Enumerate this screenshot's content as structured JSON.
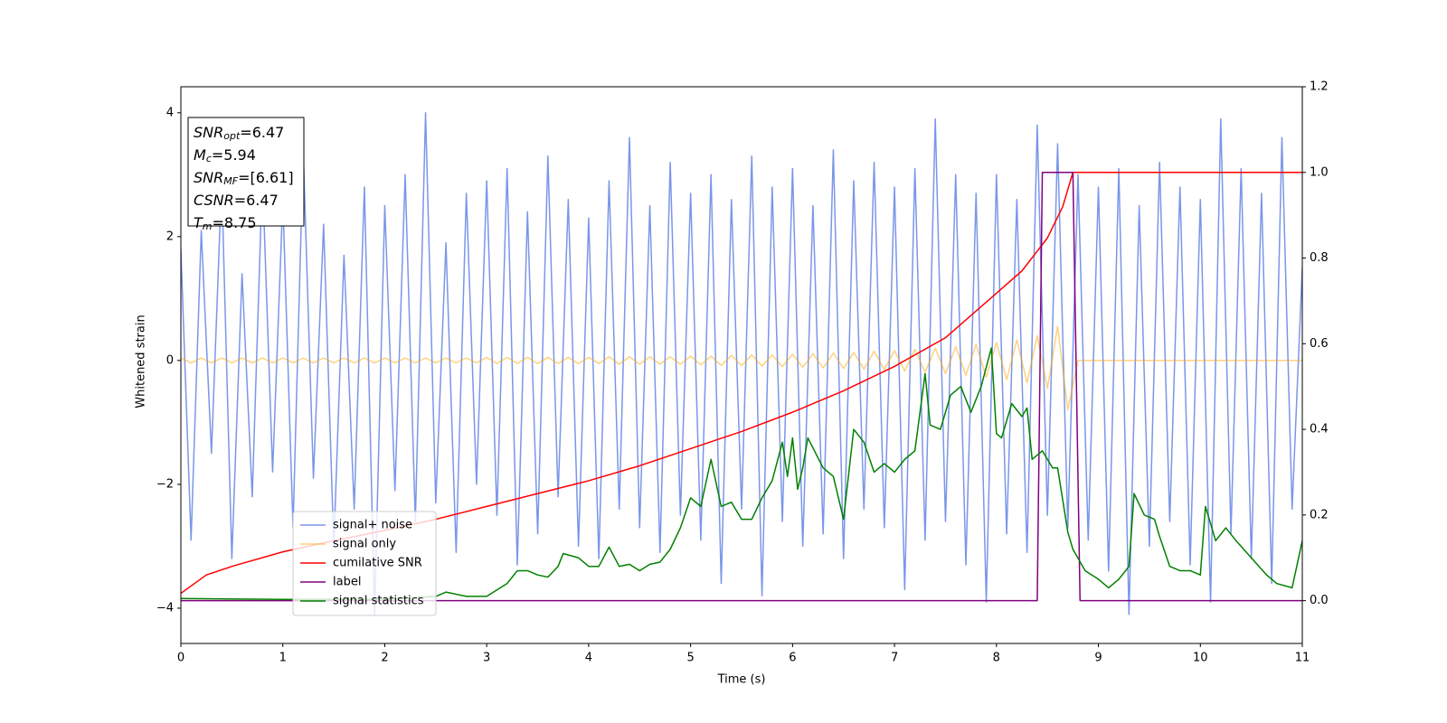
{
  "chart_data": {
    "type": "line",
    "xlabel": "Time (s)",
    "ylabel": "Whitened strain",
    "xlim": [
      0,
      11
    ],
    "xticks": [
      0,
      1,
      2,
      3,
      4,
      5,
      6,
      7,
      8,
      9,
      10,
      11
    ],
    "ylim": [
      -4.57,
      4.42
    ],
    "yticks": [
      {
        "value": -4,
        "label": "−4"
      },
      {
        "value": -2,
        "label": "−2"
      },
      0,
      2,
      4
    ],
    "y2lim": [
      -0.1,
      1.2
    ],
    "y2ticks": [
      {
        "value": 0,
        "label": "0.0"
      },
      {
        "value": 0.2,
        "label": "0.2"
      },
      {
        "value": 0.4,
        "label": "0.4"
      },
      {
        "value": 0.6,
        "label": "0.6"
      },
      {
        "value": 0.8,
        "label": "0.8"
      },
      {
        "value": 1,
        "label": "1.0"
      },
      {
        "value": 1.2,
        "label": "1.2"
      }
    ],
    "legend": "lower left",
    "annotations": [
      {
        "name": "SNR",
        "sub": "opt",
        "text": "=6.47"
      },
      {
        "name": "M",
        "sub": "c",
        "text": "=5.94"
      },
      {
        "name": "SNR",
        "sub": "MF",
        "text": "=[6.61]"
      },
      {
        "name": "CSNR",
        "text": "=6.47"
      },
      {
        "name": "T",
        "sub": "m",
        "text": "=8.75"
      }
    ],
    "x": [
      0,
      0.1,
      0.2,
      0.3,
      0.4,
      0.5,
      0.6,
      0.7,
      0.8,
      0.9,
      1,
      1.1,
      1.2,
      1.3,
      1.4,
      1.5,
      1.6,
      1.7,
      1.8,
      1.9,
      2,
      2.1,
      2.2,
      2.3,
      2.4,
      2.5,
      2.6,
      2.7,
      2.8,
      2.9,
      3,
      3.1,
      3.2,
      3.3,
      3.4,
      3.5,
      3.6,
      3.7,
      3.8,
      3.9,
      4,
      4.1,
      4.2,
      4.3,
      4.4,
      4.5,
      4.6,
      4.7,
      4.8,
      4.9,
      5,
      5.1,
      5.2,
      5.3,
      5.4,
      5.5,
      5.6,
      5.7,
      5.8,
      5.9,
      6,
      6.1,
      6.2,
      6.3,
      6.4,
      6.5,
      6.6,
      6.7,
      6.8,
      6.9,
      7,
      7.1,
      7.2,
      7.3,
      7.4,
      7.5,
      7.6,
      7.7,
      7.8,
      7.9,
      8,
      8.1,
      8.2,
      8.3,
      8.4,
      8.5,
      8.6,
      8.7,
      8.8,
      8.9,
      9,
      9.1,
      9.2,
      9.3,
      9.4,
      9.5,
      9.6,
      9.7,
      9.8,
      9.9,
      10,
      10.1,
      10.2,
      10.3,
      10.4,
      10.5,
      10.6,
      10.7,
      10.8,
      10.9,
      11
    ],
    "series": [
      {
        "name": "signal+ noise",
        "color": "#4169e1",
        "alpha": 0.7,
        "values": [
          1.8,
          -2.9,
          2.1,
          -1.5,
          2.9,
          -3.2,
          1.4,
          -2.2,
          3.0,
          -1.8,
          2.6,
          -2.7,
          3.4,
          -1.9,
          2.2,
          -3.0,
          1.7,
          -2.4,
          2.8,
          -4.1,
          2.5,
          -2.1,
          3.0,
          -2.6,
          4.0,
          -2.3,
          1.9,
          -3.1,
          2.7,
          -2.0,
          2.9,
          -2.5,
          3.1,
          -3.3,
          2.4,
          -2.8,
          3.3,
          -2.2,
          2.6,
          -3.0,
          2.3,
          -3.2,
          2.9,
          -2.4,
          3.6,
          -2.7,
          2.5,
          -3.1,
          3.2,
          -2.5,
          2.7,
          -2.9,
          3.0,
          -3.6,
          2.6,
          -2.4,
          3.3,
          -3.8,
          2.8,
          -2.6,
          3.1,
          -3.0,
          2.5,
          -2.8,
          3.4,
          -3.2,
          2.9,
          -2.4,
          3.2,
          -2.7,
          2.8,
          -3.7,
          3.1,
          -2.9,
          3.9,
          -2.6,
          3.0,
          -3.3,
          2.7,
          -3.9,
          3.0,
          -2.8,
          2.6,
          -3.1,
          3.8,
          -2.5,
          3.5,
          -2.7,
          3.0,
          -2.9,
          2.8,
          -3.4,
          3.1,
          -4.1,
          2.5,
          -3.0,
          3.2,
          -2.6,
          2.8,
          -3.3,
          2.6,
          -3.9,
          3.9,
          -2.8,
          3.1,
          -3.2,
          2.7,
          -3.6,
          3.6,
          -2.4,
          1.5
        ]
      },
      {
        "name": "signal only",
        "color": "#ffa500",
        "alpha": 0.5,
        "values": [
          0.04,
          -0.04,
          0.04,
          -0.04,
          0.04,
          -0.04,
          0.04,
          -0.04,
          0.04,
          -0.04,
          0.04,
          -0.04,
          0.04,
          -0.04,
          0.04,
          -0.04,
          0.04,
          -0.04,
          0.04,
          -0.04,
          0.04,
          -0.04,
          0.04,
          -0.04,
          0.04,
          -0.04,
          0.04,
          -0.04,
          0.04,
          -0.04,
          0.05,
          -0.05,
          0.05,
          -0.05,
          0.05,
          -0.05,
          0.05,
          -0.05,
          0.05,
          -0.05,
          0.05,
          -0.05,
          0.06,
          -0.06,
          0.06,
          -0.06,
          0.06,
          -0.06,
          0.06,
          -0.06,
          0.07,
          -0.07,
          0.07,
          -0.08,
          0.08,
          -0.08,
          0.09,
          -0.09,
          0.09,
          -0.1,
          0.1,
          -0.11,
          0.11,
          -0.12,
          0.12,
          -0.13,
          0.13,
          -0.14,
          0.15,
          -0.15,
          0.16,
          -0.17,
          0.18,
          -0.19,
          0.2,
          -0.21,
          0.22,
          -0.24,
          0.26,
          -0.27,
          0.29,
          -0.31,
          0.33,
          -0.36,
          0.4,
          -0.45,
          0.55,
          -0.8,
          0,
          0,
          0,
          0,
          0,
          0,
          0,
          0,
          0,
          0,
          0,
          0,
          0,
          0,
          0,
          0,
          0,
          0,
          0,
          0,
          0,
          0,
          0
        ]
      },
      {
        "name": "cumilative SNR",
        "color": "#ff0000",
        "axis": "y2",
        "x": [
          0,
          0.25,
          0.5,
          1,
          1.5,
          2,
          2.5,
          3,
          3.5,
          4,
          4.5,
          5,
          5.5,
          6,
          6.5,
          7,
          7.5,
          8,
          8.25,
          8.5,
          8.65,
          8.75,
          9,
          11
        ],
        "values": [
          0.017,
          0.06,
          0.08,
          0.114,
          0.14,
          0.164,
          0.19,
          0.22,
          0.25,
          0.28,
          0.315,
          0.355,
          0.395,
          0.44,
          0.49,
          0.547,
          0.614,
          0.718,
          0.77,
          0.847,
          0.92,
          1.0,
          1.0,
          1.0
        ]
      },
      {
        "name": "label",
        "color": "#800080",
        "axis": "y2",
        "x": [
          0,
          8.4,
          8.45,
          8.75,
          8.82,
          11
        ],
        "values": [
          0,
          0,
          1,
          1,
          0,
          0
        ]
      },
      {
        "name": "signal statistics",
        "color": "#008000",
        "axis": "y2",
        "x": [
          0,
          1,
          2,
          2.5,
          2.6,
          2.8,
          3.0,
          3.2,
          3.3,
          3.4,
          3.5,
          3.6,
          3.7,
          3.75,
          3.9,
          4.0,
          4.1,
          4.2,
          4.3,
          4.4,
          4.5,
          4.6,
          4.7,
          4.8,
          4.9,
          5.0,
          5.1,
          5.2,
          5.3,
          5.4,
          5.5,
          5.6,
          5.7,
          5.8,
          5.9,
          5.95,
          6.0,
          6.05,
          6.1,
          6.15,
          6.3,
          6.4,
          6.5,
          6.6,
          6.7,
          6.8,
          6.9,
          7.0,
          7.1,
          7.2,
          7.3,
          7.35,
          7.45,
          7.55,
          7.65,
          7.75,
          7.85,
          7.95,
          8.0,
          8.05,
          8.15,
          8.25,
          8.3,
          8.35,
          8.45,
          8.55,
          8.6,
          8.7,
          8.75,
          8.87,
          9.0,
          9.1,
          9.2,
          9.3,
          9.35,
          9.45,
          9.55,
          9.6,
          9.7,
          9.8,
          9.9,
          10.0,
          10.05,
          10.15,
          10.25,
          10.35,
          10.5,
          10.65,
          10.75,
          10.9,
          11
        ],
        "values": [
          0.005,
          0.003,
          0.003,
          0.01,
          0.02,
          0.01,
          0.01,
          0.04,
          0.07,
          0.07,
          0.06,
          0.055,
          0.08,
          0.11,
          0.1,
          0.08,
          0.08,
          0.125,
          0.08,
          0.085,
          0.07,
          0.085,
          0.09,
          0.12,
          0.17,
          0.24,
          0.22,
          0.33,
          0.22,
          0.23,
          0.19,
          0.19,
          0.24,
          0.28,
          0.37,
          0.29,
          0.38,
          0.26,
          0.31,
          0.38,
          0.31,
          0.29,
          0.19,
          0.4,
          0.37,
          0.3,
          0.32,
          0.3,
          0.33,
          0.35,
          0.53,
          0.41,
          0.4,
          0.48,
          0.5,
          0.44,
          0.5,
          0.59,
          0.39,
          0.38,
          0.46,
          0.43,
          0.45,
          0.33,
          0.35,
          0.31,
          0.31,
          0.16,
          0.12,
          0.07,
          0.05,
          0.03,
          0.05,
          0.08,
          0.25,
          0.2,
          0.19,
          0.15,
          0.08,
          0.07,
          0.07,
          0.06,
          0.22,
          0.14,
          0.17,
          0.14,
          0.1,
          0.06,
          0.04,
          0.03,
          0.14
        ]
      }
    ]
  }
}
